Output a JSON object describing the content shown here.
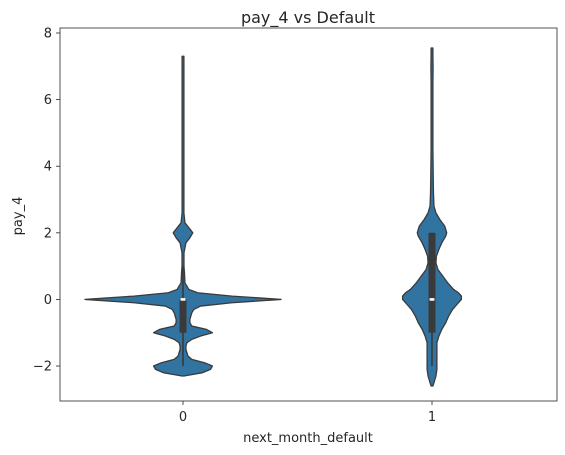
{
  "chart_data": {
    "type": "violin",
    "title": "pay_4 vs Default",
    "xlabel": "next_month_default",
    "ylabel": "pay_4",
    "categories": [
      "0",
      "1"
    ],
    "ylim": [
      -3.05,
      8.15
    ],
    "yticks": [
      -2,
      0,
      2,
      4,
      6,
      8
    ],
    "ytick_labels": [
      "−2",
      "0",
      "2",
      "4",
      "6",
      "8"
    ],
    "grid": false,
    "legend": "none",
    "colors": {
      "fill": "#3274a1",
      "stroke": "#3a3a3a",
      "box": "#3a3a3a",
      "median": "#ffffff"
    },
    "violins": [
      {
        "category": "0",
        "density_profile": [
          [
            -2.3,
            0.0
          ],
          [
            -2.2,
            0.2
          ],
          [
            -2.1,
            0.28
          ],
          [
            -2.0,
            0.3
          ],
          [
            -1.9,
            0.22
          ],
          [
            -1.8,
            0.09
          ],
          [
            -1.7,
            0.05
          ],
          [
            -1.6,
            0.04
          ],
          [
            -1.5,
            0.03
          ],
          [
            -1.4,
            0.03
          ],
          [
            -1.3,
            0.04
          ],
          [
            -1.2,
            0.09
          ],
          [
            -1.1,
            0.18
          ],
          [
            -1.0,
            0.3
          ],
          [
            -0.9,
            0.24
          ],
          [
            -0.8,
            0.09
          ],
          [
            -0.7,
            0.07
          ],
          [
            -0.6,
            0.07
          ],
          [
            -0.5,
            0.08
          ],
          [
            -0.4,
            0.09
          ],
          [
            -0.3,
            0.11
          ],
          [
            -0.2,
            0.18
          ],
          [
            -0.1,
            0.5
          ],
          [
            0.0,
            1.0
          ],
          [
            0.1,
            0.5
          ],
          [
            0.2,
            0.15
          ],
          [
            0.3,
            0.06
          ],
          [
            0.5,
            0.02
          ],
          [
            0.8,
            0.015
          ],
          [
            1.0,
            0.01
          ],
          [
            1.4,
            0.01
          ],
          [
            1.7,
            0.03
          ],
          [
            1.85,
            0.07
          ],
          [
            2.0,
            0.1
          ],
          [
            2.15,
            0.06
          ],
          [
            2.3,
            0.02
          ],
          [
            2.6,
            0.008
          ],
          [
            3.0,
            0.008
          ],
          [
            3.5,
            0.005
          ],
          [
            4.5,
            0.004
          ],
          [
            5.5,
            0.003
          ],
          [
            6.5,
            0.003
          ],
          [
            7.3,
            0.0
          ]
        ],
        "whisker_low": -2.0,
        "whisker_high": 1.0,
        "q1": -1.0,
        "q3": 0.0,
        "median": 0.0
      },
      {
        "category": "1",
        "density_profile": [
          [
            -2.6,
            0.0
          ],
          [
            -2.5,
            0.02
          ],
          [
            -2.3,
            0.04
          ],
          [
            -2.1,
            0.05
          ],
          [
            -1.9,
            0.05
          ],
          [
            -1.7,
            0.05
          ],
          [
            -1.5,
            0.05
          ],
          [
            -1.3,
            0.05
          ],
          [
            -1.1,
            0.07
          ],
          [
            -0.9,
            0.1
          ],
          [
            -0.7,
            0.14
          ],
          [
            -0.5,
            0.17
          ],
          [
            -0.3,
            0.21
          ],
          [
            -0.1,
            0.27
          ],
          [
            0.0,
            0.3
          ],
          [
            0.1,
            0.3
          ],
          [
            0.2,
            0.27
          ],
          [
            0.3,
            0.22
          ],
          [
            0.5,
            0.16
          ],
          [
            0.7,
            0.11
          ],
          [
            0.9,
            0.06
          ],
          [
            1.1,
            0.04
          ],
          [
            1.3,
            0.045
          ],
          [
            1.5,
            0.07
          ],
          [
            1.7,
            0.1
          ],
          [
            1.9,
            0.14
          ],
          [
            2.0,
            0.15
          ],
          [
            2.2,
            0.13
          ],
          [
            2.4,
            0.08
          ],
          [
            2.6,
            0.04
          ],
          [
            2.8,
            0.02
          ],
          [
            3.2,
            0.015
          ],
          [
            3.6,
            0.013
          ],
          [
            4.0,
            0.011
          ],
          [
            4.5,
            0.009
          ],
          [
            5.0,
            0.008
          ],
          [
            5.5,
            0.008
          ],
          [
            6.0,
            0.007
          ],
          [
            6.5,
            0.009
          ],
          [
            7.0,
            0.011
          ],
          [
            7.3,
            0.008
          ],
          [
            7.55,
            0.0
          ]
        ],
        "whisker_low": -2.0,
        "whisker_high": 2.0,
        "q1": -1.0,
        "q3": 2.0,
        "median": 0.0
      }
    ]
  }
}
